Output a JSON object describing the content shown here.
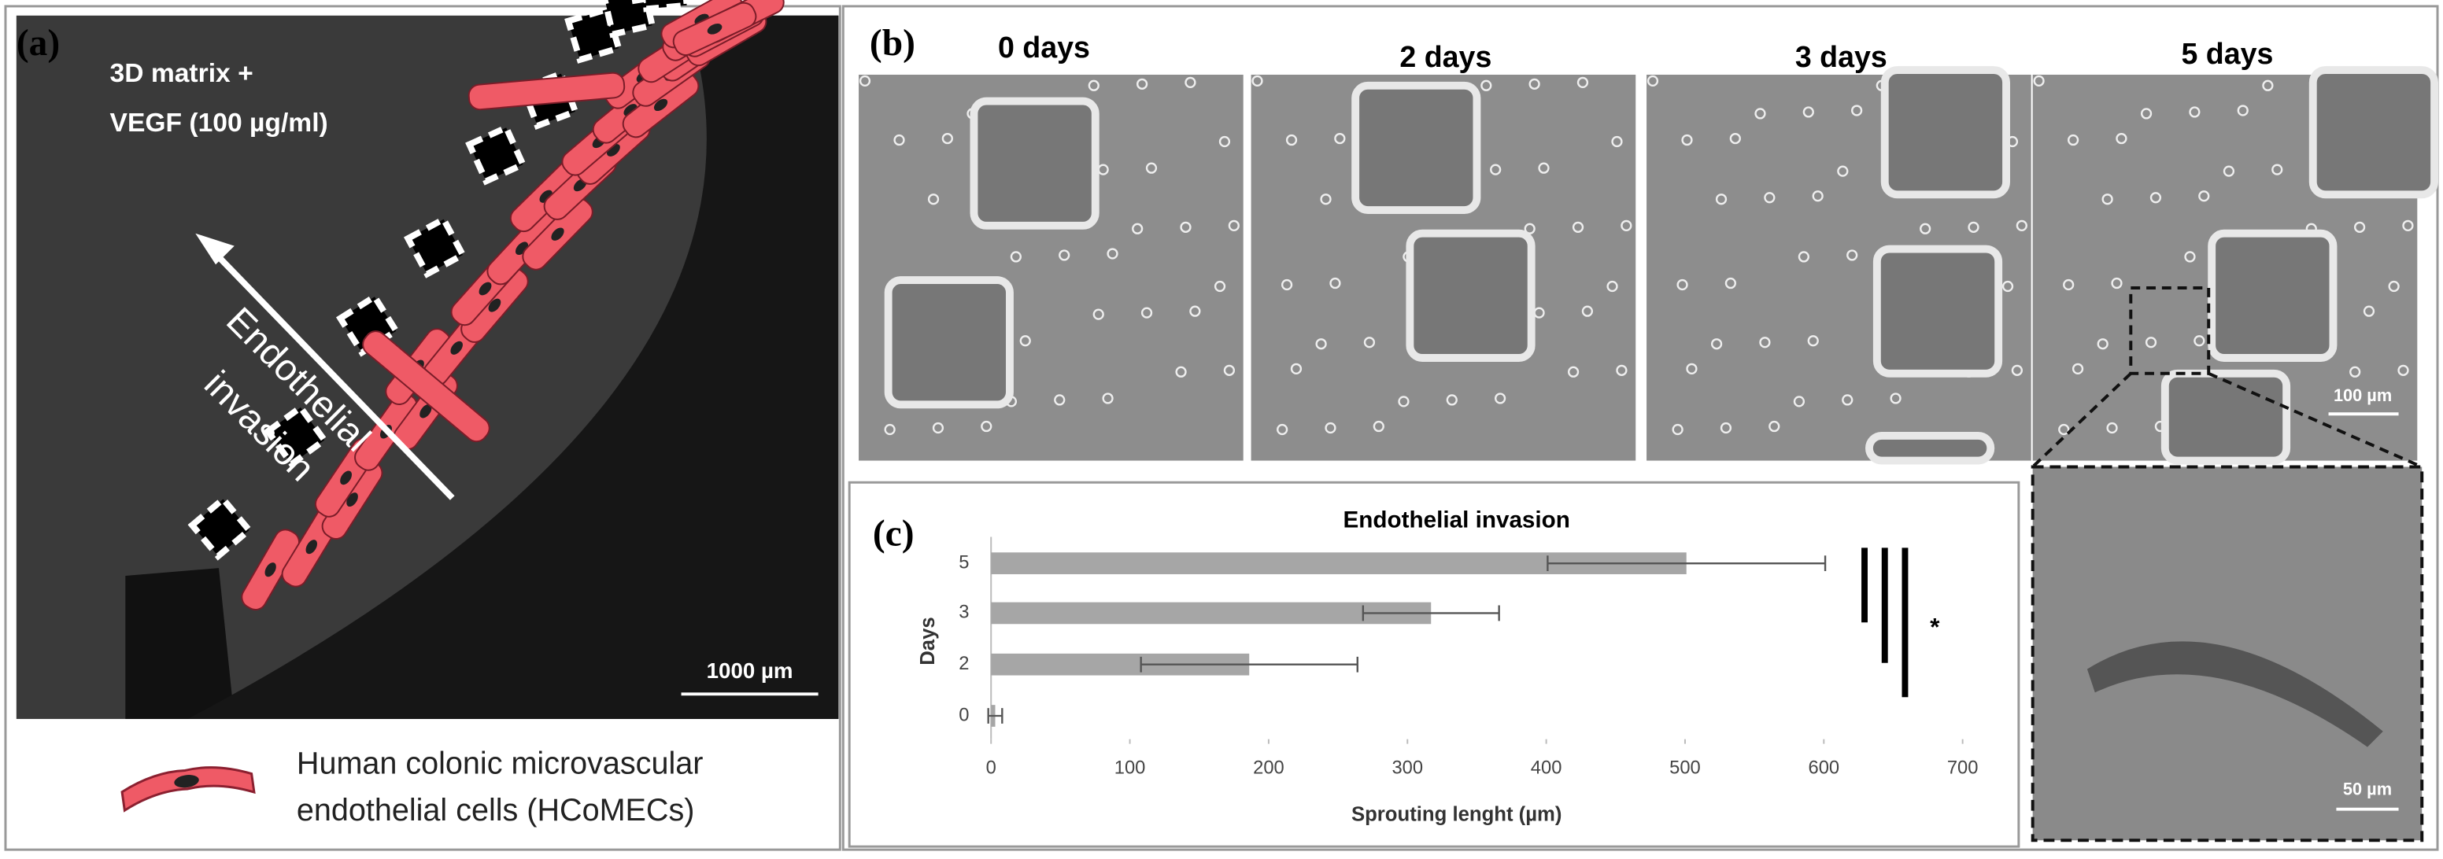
{
  "panel_a": {
    "label": "(a)",
    "matrix_line1": "3D matrix +",
    "matrix_line2": "VEGF (100 µg/ml)",
    "arrow_line1": "Endothelial",
    "arrow_line2": "invasion",
    "scale_bar": "1000 µm",
    "legend_line1": "Human colonic microvascular",
    "legend_line2": "endothelial cells (HCoMECs)"
  },
  "panel_b": {
    "label": "(b)",
    "days": [
      "0 days",
      "2 days",
      "3 days",
      "5 days"
    ],
    "scale_bar": "100 µm",
    "inset_scale_bar": "50 µm"
  },
  "chart_data": {
    "type": "hbar",
    "label": "(c)",
    "title": "Endothelial invasion",
    "x_label": "Sprouting lenght (µm)",
    "y_label": "Days",
    "categories": [
      "5",
      "3",
      "2",
      "0"
    ],
    "values": [
      501,
      317,
      186,
      3
    ],
    "errors": [
      100,
      49,
      78,
      5
    ],
    "color": "#a6a6a6",
    "xlim": [
      0,
      700
    ],
    "xticks": [
      0,
      100,
      200,
      300,
      400,
      500,
      600,
      700
    ],
    "significance": "*"
  }
}
